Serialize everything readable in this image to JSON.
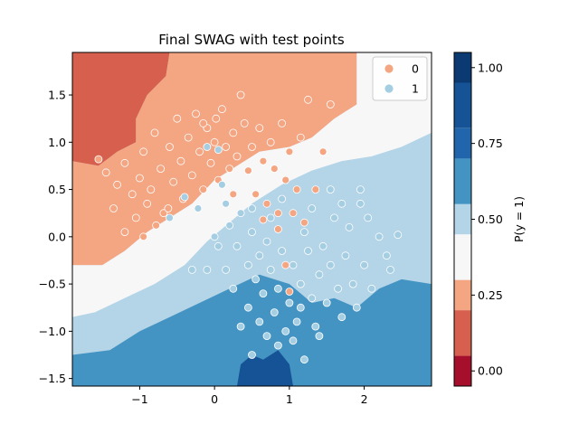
{
  "chart_data": {
    "type": "scatter",
    "title": "Final SWAG with test points",
    "xlabel": "",
    "ylabel": "",
    "xlim": [
      -1.9,
      2.9
    ],
    "ylim": [
      -1.58,
      1.95
    ],
    "x_ticks": [
      -1,
      0,
      1,
      2
    ],
    "y_ticks": [
      -1.5,
      -1.0,
      -0.5,
      0.0,
      0.5,
      1.0,
      1.5
    ],
    "x_tick_labels": [
      "−1",
      "0",
      "1",
      "2"
    ],
    "y_tick_labels": [
      "−1.5",
      "−1.0",
      "−0.5",
      "0.0",
      "0.5",
      "1.0",
      "1.5"
    ],
    "grid": false,
    "legend_position": "top-right",
    "series": [
      {
        "name": "0",
        "color": "#f4a582",
        "points": [
          [
            -1.55,
            0.82
          ],
          [
            -1.45,
            0.68
          ],
          [
            -1.3,
            0.55
          ],
          [
            -1.2,
            0.78
          ],
          [
            -1.1,
            0.45
          ],
          [
            -1.0,
            0.62
          ],
          [
            -0.95,
            0.9
          ],
          [
            -0.9,
            0.35
          ],
          [
            -0.85,
            0.5
          ],
          [
            -0.8,
            1.1
          ],
          [
            -0.72,
            0.72
          ],
          [
            -0.68,
            0.25
          ],
          [
            -0.6,
            0.95
          ],
          [
            -0.55,
            0.58
          ],
          [
            -0.5,
            1.25
          ],
          [
            -0.45,
            0.8
          ],
          [
            -0.42,
            0.4
          ],
          [
            -0.35,
            1.05
          ],
          [
            -0.3,
            0.65
          ],
          [
            -0.25,
            1.3
          ],
          [
            -0.2,
            0.9
          ],
          [
            -0.15,
            0.5
          ],
          [
            -0.1,
            1.15
          ],
          [
            -0.05,
            0.78
          ],
          [
            0.0,
            1.0
          ],
          [
            0.05,
            0.6
          ],
          [
            0.1,
            1.35
          ],
          [
            0.15,
            0.95
          ],
          [
            0.2,
            0.72
          ],
          [
            0.25,
            1.1
          ],
          [
            0.3,
            0.85
          ],
          [
            0.4,
            1.2
          ],
          [
            0.45,
            0.7
          ],
          [
            0.5,
            0.95
          ],
          [
            0.55,
            0.45
          ],
          [
            0.6,
            1.15
          ],
          [
            0.65,
            0.8
          ],
          [
            0.7,
            0.35
          ],
          [
            0.75,
            1.0
          ],
          [
            0.8,
            0.72
          ],
          [
            0.85,
            0.25
          ],
          [
            0.9,
            1.2
          ],
          [
            0.95,
            0.6
          ],
          [
            1.0,
            0.9
          ],
          [
            1.05,
            0.25
          ],
          [
            1.1,
            0.5
          ],
          [
            1.15,
            1.05
          ],
          [
            1.2,
            0.15
          ],
          [
            1.25,
            1.45
          ],
          [
            1.35,
            0.5
          ],
          [
            1.45,
            0.9
          ],
          [
            -1.35,
            0.3
          ],
          [
            -1.2,
            0.05
          ],
          [
            -1.05,
            0.2
          ],
          [
            -0.95,
            0.0
          ],
          [
            -0.78,
            0.12
          ],
          [
            -0.62,
            0.3
          ],
          [
            0.25,
            0.45
          ],
          [
            0.65,
            0.18
          ],
          [
            0.85,
            0.08
          ],
          [
            0.95,
            -0.3
          ],
          [
            1.0,
            -0.58
          ],
          [
            1.55,
            1.4
          ],
          [
            0.35,
            1.5
          ],
          [
            -0.15,
            1.2
          ],
          [
            0.02,
            1.25
          ]
        ]
      },
      {
        "name": "1",
        "color": "#a6cee3",
        "points": [
          [
            -0.6,
            0.2
          ],
          [
            -0.4,
            0.42
          ],
          [
            -0.22,
            0.3
          ],
          [
            -0.1,
            0.95
          ],
          [
            0.05,
            0.92
          ],
          [
            0.1,
            0.55
          ],
          [
            0.15,
            0.35
          ],
          [
            0.2,
            0.12
          ],
          [
            0.3,
            -0.1
          ],
          [
            0.35,
            0.25
          ],
          [
            0.45,
            -0.3
          ],
          [
            0.5,
            0.05
          ],
          [
            0.55,
            -0.45
          ],
          [
            0.6,
            -0.2
          ],
          [
            0.65,
            -0.6
          ],
          [
            0.7,
            -0.05
          ],
          [
            0.75,
            -0.35
          ],
          [
            0.8,
            -0.8
          ],
          [
            0.85,
            -0.55
          ],
          [
            0.9,
            -0.15
          ],
          [
            0.95,
            -1.0
          ],
          [
            1.0,
            -0.7
          ],
          [
            1.05,
            -0.3
          ],
          [
            1.1,
            -0.9
          ],
          [
            1.15,
            -0.5
          ],
          [
            1.2,
            0.05
          ],
          [
            1.25,
            -0.15
          ],
          [
            1.3,
            -0.65
          ],
          [
            1.35,
            -0.95
          ],
          [
            1.4,
            -0.4
          ],
          [
            1.45,
            -0.1
          ],
          [
            1.5,
            -0.7
          ],
          [
            1.55,
            -0.3
          ],
          [
            1.6,
            0.2
          ],
          [
            1.65,
            -0.55
          ],
          [
            1.7,
            -0.85
          ],
          [
            1.75,
            -0.2
          ],
          [
            1.8,
            0.1
          ],
          [
            1.85,
            -0.5
          ],
          [
            1.9,
            -0.75
          ],
          [
            1.95,
            0.35
          ],
          [
            2.0,
            -0.3
          ],
          [
            2.05,
            0.2
          ],
          [
            2.1,
            -0.55
          ],
          [
            2.2,
            0.0
          ],
          [
            2.3,
            -0.2
          ],
          [
            2.45,
            0.02
          ],
          [
            2.35,
            -0.35
          ],
          [
            0.15,
            -0.35
          ],
          [
            0.25,
            -0.55
          ],
          [
            0.05,
            -0.1
          ],
          [
            -0.1,
            -0.35
          ],
          [
            -0.3,
            -0.35
          ],
          [
            0.0,
            0.0
          ],
          [
            0.6,
            -0.9
          ],
          [
            0.7,
            -1.05
          ],
          [
            0.85,
            -1.15
          ],
          [
            1.05,
            -1.1
          ],
          [
            1.2,
            -1.3
          ],
          [
            0.45,
            -0.75
          ],
          [
            0.9,
            0.4
          ],
          [
            1.3,
            0.3
          ],
          [
            1.55,
            0.5
          ],
          [
            1.95,
            0.5
          ],
          [
            1.7,
            0.35
          ],
          [
            0.5,
            0.3
          ],
          [
            1.15,
            -0.75
          ],
          [
            1.4,
            -1.05
          ],
          [
            0.75,
            0.2
          ],
          [
            0.35,
            -0.95
          ],
          [
            0.5,
            -1.25
          ]
        ]
      }
    ],
    "colorbar": {
      "label": "P(y = 1)",
      "ticks": [
        0.0,
        0.25,
        0.5,
        0.75,
        1.0
      ],
      "tick_labels": [
        "0.00",
        "0.25",
        "0.50",
        "0.75",
        "1.00"
      ],
      "levels": [
        -0.05,
        0.05,
        0.2,
        0.3,
        0.45,
        0.55,
        0.7,
        0.8,
        0.95,
        1.05
      ],
      "colors": [
        "#a50f2c",
        "#d6604d",
        "#f4a582",
        "#f7f7f7",
        "#b4d4e7",
        "#4393c3",
        "#2166ac",
        "#165396",
        "#0b3a72"
      ]
    },
    "contour_regions": [
      {
        "level": 0.15,
        "color": "#d6604d",
        "polygon": [
          [
            -1.9,
            1.95
          ],
          [
            -0.6,
            1.95
          ],
          [
            -0.65,
            1.7
          ],
          [
            -0.9,
            1.5
          ],
          [
            -1.05,
            1.25
          ],
          [
            -1.05,
            1.0
          ],
          [
            -1.3,
            0.9
          ],
          [
            -1.55,
            0.75
          ],
          [
            -1.9,
            0.8
          ]
        ]
      },
      {
        "level": 0.35,
        "color": "#f4a582",
        "polygon": [
          [
            -1.9,
            0.8
          ],
          [
            -1.55,
            0.75
          ],
          [
            -1.3,
            0.9
          ],
          [
            -1.05,
            1.0
          ],
          [
            -1.05,
            1.25
          ],
          [
            -0.9,
            1.5
          ],
          [
            -0.65,
            1.7
          ],
          [
            -0.6,
            1.95
          ],
          [
            1.9,
            1.95
          ],
          [
            1.9,
            1.4
          ],
          [
            1.6,
            1.25
          ],
          [
            1.3,
            1.05
          ],
          [
            1.0,
            0.95
          ],
          [
            0.6,
            0.9
          ],
          [
            0.3,
            0.75
          ],
          [
            0.0,
            0.6
          ],
          [
            -0.3,
            0.35
          ],
          [
            -0.6,
            0.2
          ],
          [
            -0.9,
            0.05
          ],
          [
            -1.2,
            -0.15
          ],
          [
            -1.5,
            -0.3
          ],
          [
            -1.9,
            -0.3
          ]
        ]
      },
      {
        "level": 0.5,
        "color": "#f7f7f7",
        "polygon": [
          [
            -1.9,
            -0.3
          ],
          [
            -1.5,
            -0.3
          ],
          [
            -1.2,
            -0.15
          ],
          [
            -0.9,
            0.05
          ],
          [
            -0.6,
            0.2
          ],
          [
            -0.3,
            0.35
          ],
          [
            0.0,
            0.6
          ],
          [
            0.3,
            0.75
          ],
          [
            0.6,
            0.9
          ],
          [
            1.0,
            0.95
          ],
          [
            1.3,
            1.05
          ],
          [
            1.6,
            1.25
          ],
          [
            1.9,
            1.4
          ],
          [
            1.9,
            1.95
          ],
          [
            2.9,
            1.95
          ],
          [
            2.9,
            1.1
          ],
          [
            2.5,
            0.95
          ],
          [
            2.1,
            0.85
          ],
          [
            1.7,
            0.8
          ],
          [
            1.3,
            0.7
          ],
          [
            0.9,
            0.55
          ],
          [
            0.5,
            0.35
          ],
          [
            0.2,
            0.15
          ],
          [
            -0.1,
            -0.05
          ],
          [
            -0.4,
            -0.3
          ],
          [
            -0.8,
            -0.5
          ],
          [
            -1.2,
            -0.65
          ],
          [
            -1.6,
            -0.8
          ],
          [
            -1.9,
            -0.85
          ]
        ]
      },
      {
        "level": 0.65,
        "color": "#b4d4e7",
        "polygon": [
          [
            -1.9,
            -0.85
          ],
          [
            -1.6,
            -0.8
          ],
          [
            -1.2,
            -0.65
          ],
          [
            -0.8,
            -0.5
          ],
          [
            -0.4,
            -0.3
          ],
          [
            -0.1,
            -0.05
          ],
          [
            0.2,
            0.15
          ],
          [
            0.5,
            0.35
          ],
          [
            0.9,
            0.55
          ],
          [
            1.3,
            0.7
          ],
          [
            1.7,
            0.8
          ],
          [
            2.1,
            0.85
          ],
          [
            2.5,
            0.95
          ],
          [
            2.9,
            1.1
          ],
          [
            2.9,
            -0.5
          ],
          [
            2.5,
            -0.45
          ],
          [
            2.2,
            -0.55
          ],
          [
            1.9,
            -0.75
          ],
          [
            1.6,
            -0.65
          ],
          [
            1.3,
            -0.7
          ],
          [
            1.0,
            -0.5
          ],
          [
            0.6,
            -0.4
          ],
          [
            0.2,
            -0.55
          ],
          [
            -0.2,
            -0.7
          ],
          [
            -0.6,
            -0.85
          ],
          [
            -1.0,
            -1.0
          ],
          [
            -1.4,
            -1.2
          ],
          [
            -1.9,
            -1.25
          ]
        ]
      },
      {
        "level": 0.75,
        "color": "#4393c3",
        "polygon": [
          [
            -1.9,
            -1.25
          ],
          [
            -1.4,
            -1.2
          ],
          [
            -1.0,
            -1.0
          ],
          [
            -0.6,
            -0.85
          ],
          [
            -0.2,
            -0.7
          ],
          [
            0.2,
            -0.55
          ],
          [
            0.6,
            -0.4
          ],
          [
            1.0,
            -0.5
          ],
          [
            1.3,
            -0.7
          ],
          [
            1.6,
            -0.65
          ],
          [
            1.9,
            -0.75
          ],
          [
            2.2,
            -0.55
          ],
          [
            2.5,
            -0.45
          ],
          [
            2.9,
            -0.5
          ],
          [
            2.9,
            -1.58
          ],
          [
            -1.9,
            -1.58
          ]
        ]
      },
      {
        "level": 0.9,
        "color": "#165396",
        "polygon": [
          [
            0.3,
            -1.58
          ],
          [
            0.35,
            -1.35
          ],
          [
            0.5,
            -1.25
          ],
          [
            0.65,
            -1.3
          ],
          [
            0.85,
            -1.2
          ],
          [
            1.0,
            -1.35
          ],
          [
            1.05,
            -1.58
          ]
        ]
      }
    ]
  }
}
